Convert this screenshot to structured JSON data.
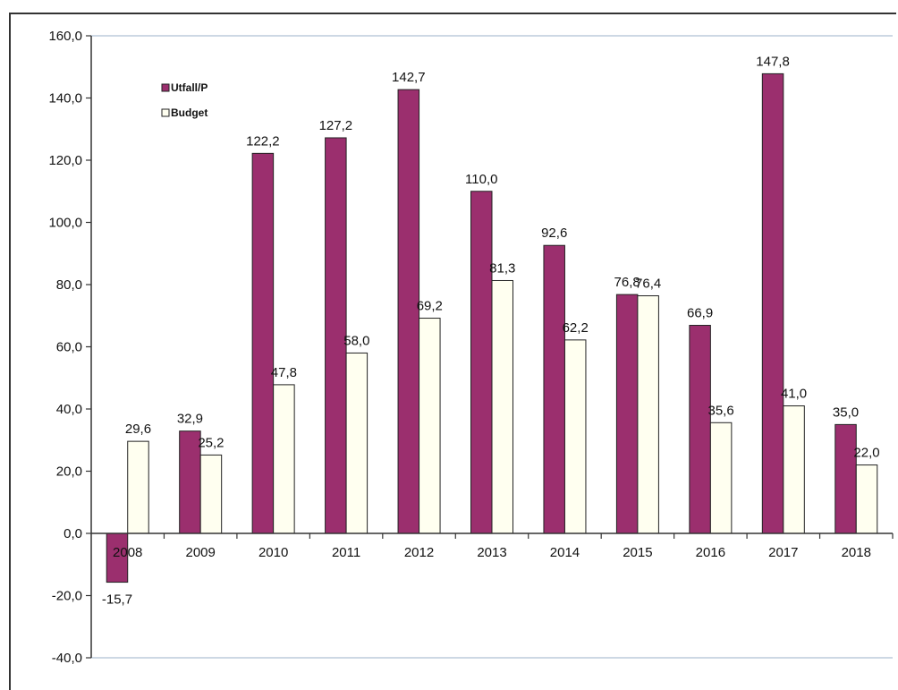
{
  "chart_data": {
    "type": "bar",
    "categories": [
      "2008",
      "2009",
      "2010",
      "2011",
      "2012",
      "2013",
      "2014",
      "2015",
      "2016",
      "2017",
      "2018"
    ],
    "series": [
      {
        "name": "Utfall/P",
        "color": "#9b2f6e",
        "values": [
          -15.7,
          32.9,
          122.2,
          127.2,
          142.7,
          110.0,
          92.6,
          76.8,
          66.9,
          147.8,
          35.0
        ],
        "labels": [
          "-15,7",
          "32,9",
          "122,2",
          "127,2",
          "142,7",
          "110,0",
          "92,6",
          "76,8",
          "66,9",
          "147,8",
          "35,0"
        ]
      },
      {
        "name": "Budget",
        "color": "#fffff0",
        "values": [
          29.6,
          25.2,
          47.8,
          58.0,
          69.2,
          81.3,
          62.2,
          76.4,
          35.6,
          41.0,
          22.0
        ],
        "labels": [
          "29,6",
          "25,2",
          "47,8",
          "58,0",
          "69,2",
          "81,3",
          "62,2",
          "76,4",
          "35,6",
          "41,0",
          "22,0"
        ]
      }
    ],
    "ylim": [
      -40,
      160
    ],
    "yticks": [
      -40,
      -20,
      0,
      20,
      40,
      60,
      80,
      100,
      120,
      140,
      160
    ],
    "ytick_labels": [
      "-40,0",
      "-20,0",
      "0,0",
      "20,0",
      "40,0",
      "60,0",
      "80,0",
      "100,0",
      "120,0",
      "140,0",
      "160,0"
    ],
    "grid": false,
    "legend_position": "top-left",
    "title": "",
    "xlabel": "",
    "ylabel": ""
  }
}
